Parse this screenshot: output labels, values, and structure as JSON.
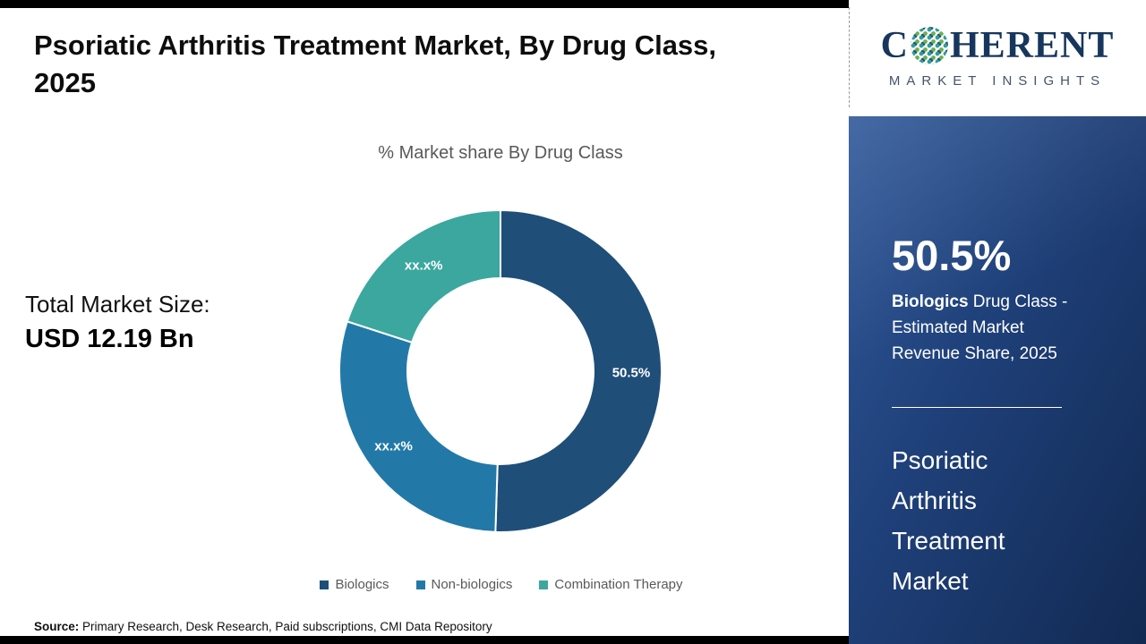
{
  "title": "Psoriatic Arthritis Treatment Market, By Drug Class, 2025",
  "logo": {
    "word_start": "C",
    "word_end": "HERENT",
    "subtitle": "MARKET INSIGHTS"
  },
  "total_market": {
    "label": "Total Market Size:",
    "value": "USD 12.19 Bn"
  },
  "source": {
    "label": "Source:",
    "text": " Primary Research, Desk Research, Paid subscriptions, CMI Data Repository"
  },
  "chart_data": {
    "type": "pie",
    "donut": true,
    "title": "% Market share By Drug Class",
    "legend_position": "bottom",
    "slices": [
      {
        "label": "Biologics",
        "value": 50.5,
        "display": "50.5%",
        "color": "#1F4E79"
      },
      {
        "label": "Non-biologics",
        "value": 29.5,
        "display": "xx.x%",
        "color": "#2279A8"
      },
      {
        "label": "Combination Therapy",
        "value": 20.0,
        "display": "xx.x%",
        "color": "#3BA79F"
      }
    ]
  },
  "side_panel": {
    "stat_value": "50.5%",
    "stat_desc_bold": "Biologics",
    "stat_desc_rest": " Drug Class - Estimated Market Revenue Share, 2025",
    "market_name": "Psoriatic Arthritis Treatment Market",
    "panel_color_top": "#30599A",
    "panel_color_bottom": "#122A52"
  }
}
